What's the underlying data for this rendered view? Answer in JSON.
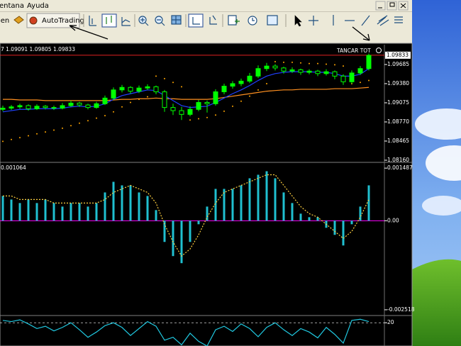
{
  "menu": [
    "entana",
    "Ayuda"
  ],
  "toolbar": {
    "cut_button": "len",
    "autotrading": "AutoTrading"
  },
  "chart": {
    "type": "candlestick",
    "symbol_info": "7 1.09091 1.09805 1.09833",
    "button_label": "TANCAR TOT",
    "current_price": {
      "value": 1.09833,
      "label": "1.09833"
    },
    "ylim": [
      1.08137,
      1.10001
    ],
    "yticks": [
      {
        "value": 1.09685,
        "label": "1.09685"
      },
      {
        "value": 1.0938,
        "label": "1.09380"
      },
      {
        "value": 1.09075,
        "label": "1.09075"
      },
      {
        "value": 1.0877,
        "label": "1.08770"
      },
      {
        "value": 1.08465,
        "label": "1.08465"
      },
      {
        "value": 1.0816,
        "label": "1.08160"
      }
    ],
    "candles": [
      [
        1.0897,
        1.0903,
        1.0894,
        1.0899
      ],
      [
        1.0899,
        1.0904,
        1.0896,
        1.0901
      ],
      [
        1.0901,
        1.0906,
        1.0898,
        1.0903
      ],
      [
        1.0903,
        1.0905,
        1.0895,
        1.0898
      ],
      [
        1.0898,
        1.0905,
        1.0896,
        1.0902
      ],
      [
        1.0902,
        1.0904,
        1.0897,
        1.09
      ],
      [
        1.09,
        1.0903,
        1.0896,
        1.0899
      ],
      [
        1.0899,
        1.0907,
        1.0897,
        1.0903
      ],
      [
        1.0903,
        1.0911,
        1.0901,
        1.0907
      ],
      [
        1.0907,
        1.0909,
        1.0901,
        1.0904
      ],
      [
        1.0904,
        1.0906,
        1.0897,
        1.09
      ],
      [
        1.09,
        1.0909,
        1.0898,
        1.0906
      ],
      [
        1.0906,
        1.0919,
        1.0904,
        1.0915
      ],
      [
        1.0915,
        1.0932,
        1.0912,
        1.0928
      ],
      [
        1.0928,
        1.0936,
        1.0924,
        1.0932
      ],
      [
        1.0932,
        1.0934,
        1.0922,
        1.0926
      ],
      [
        1.0926,
        1.0935,
        1.0923,
        1.0931
      ],
      [
        1.0931,
        1.0937,
        1.0928,
        1.0933
      ],
      [
        1.0933,
        1.0935,
        1.0921,
        1.0925
      ],
      [
        1.0925,
        1.0928,
        1.0893,
        1.09
      ],
      [
        1.09,
        1.0906,
        1.0888,
        1.0895
      ],
      [
        1.0895,
        1.0901,
        1.088,
        1.0889
      ],
      [
        1.0889,
        1.0902,
        1.0886,
        1.0897
      ],
      [
        1.0897,
        1.0912,
        1.0894,
        1.0908
      ],
      [
        1.0908,
        1.0911,
        1.0892,
        1.0906
      ],
      [
        1.0906,
        1.0929,
        1.0903,
        1.0925
      ],
      [
        1.0925,
        1.0938,
        1.0921,
        1.0934
      ],
      [
        1.0934,
        1.0942,
        1.093,
        1.0938
      ],
      [
        1.0938,
        1.0946,
        1.0934,
        1.0942
      ],
      [
        1.0942,
        1.0955,
        1.0939,
        1.095
      ],
      [
        1.095,
        1.0967,
        1.0947,
        1.0962
      ],
      [
        1.0962,
        1.0971,
        1.0958,
        1.0966
      ],
      [
        1.0966,
        1.0969,
        1.0959,
        1.0963
      ],
      [
        1.0963,
        1.0965,
        1.0954,
        1.0958
      ],
      [
        1.0958,
        1.0964,
        1.0955,
        1.096
      ],
      [
        1.096,
        1.0962,
        1.0952,
        1.0956
      ],
      [
        1.0956,
        1.0961,
        1.0953,
        1.0958
      ],
      [
        1.0958,
        1.096,
        1.095,
        1.0954
      ],
      [
        1.0954,
        1.0961,
        1.0951,
        1.0957
      ],
      [
        1.0957,
        1.0959,
        1.0945,
        1.095
      ],
      [
        1.095,
        1.0953,
        1.0936,
        1.0941
      ],
      [
        1.0941,
        1.0959,
        1.0938,
        1.0955
      ],
      [
        1.0955,
        1.0966,
        1.0952,
        1.0962
      ],
      [
        1.0962,
        1.0986,
        1.0959,
        1.0983
      ]
    ],
    "ma_fast": {
      "color": "#2040ff",
      "values": [
        1.0893,
        1.0895,
        1.0897,
        1.0897,
        1.0898,
        1.0898,
        1.0898,
        1.0899,
        1.0901,
        1.0902,
        1.0901,
        1.0902,
        1.0906,
        1.0913,
        1.0919,
        1.0922,
        1.0925,
        1.0928,
        1.0927,
        1.0919,
        1.0911,
        1.0903,
        1.09,
        1.0901,
        1.0902,
        1.0908,
        1.0915,
        1.0922,
        1.0928,
        1.0935,
        1.0943,
        1.095,
        1.0954,
        1.0956,
        1.0957,
        1.0957,
        1.0957,
        1.0956,
        1.0956,
        1.0954,
        1.095,
        1.095,
        1.0953,
        1.0962
      ]
    },
    "ma_slow": {
      "color": "#ff9020",
      "values": [
        1.0913,
        1.0913,
        1.0912,
        1.0912,
        1.0912,
        1.0911,
        1.0911,
        1.0911,
        1.0911,
        1.0911,
        1.0911,
        1.0911,
        1.0911,
        1.0912,
        1.0913,
        1.0913,
        1.0914,
        1.0914,
        1.0915,
        1.0914,
        1.0914,
        1.0913,
        1.0913,
        1.0913,
        1.0913,
        1.0914,
        1.0916,
        1.0918,
        1.092,
        1.0922,
        1.0924,
        1.0926,
        1.0927,
        1.0928,
        1.0928,
        1.0929,
        1.0929,
        1.0929,
        1.0929,
        1.093,
        1.093,
        1.093,
        1.0931,
        1.0932
      ]
    },
    "sar": {
      "color": "#ffa500",
      "values": [
        1.0846,
        1.0849,
        1.0852,
        1.0855,
        1.0858,
        1.0861,
        1.0864,
        1.0867,
        1.0871,
        1.0875,
        1.0879,
        1.0883,
        1.0887,
        1.0893,
        1.0901,
        1.0908,
        1.0913,
        1.0917,
        1.095,
        1.0946,
        1.094,
        1.0933,
        1.088,
        1.0882,
        1.0884,
        1.0888,
        1.0894,
        1.0902,
        1.091,
        1.0918,
        1.0928,
        1.0938,
        1.0973,
        1.0972,
        1.0972,
        1.0971,
        1.097,
        1.097,
        1.0969,
        1.0968,
        1.0966,
        1.0938,
        1.094,
        1.0943
      ]
    }
  },
  "macd": {
    "info": 0.001064,
    "ylim": [
      -0.00266,
      0.00159
    ],
    "yticks": [
      0.001487,
      {
        "value": 0,
        "label": "0.00"
      },
      -0.002518
    ],
    "histogram": {
      "color": "#20c0d0",
      "values": [
        0.0007,
        0.0006,
        0.0005,
        0.0006,
        0.0005,
        0.0006,
        0.0005,
        0.0004,
        0.0005,
        0.0005,
        0.0004,
        0.0005,
        0.0008,
        0.0011,
        0.001,
        0.001,
        0.0008,
        0.0007,
        0.0003,
        -0.0006,
        -0.001,
        -0.0012,
        -0.0006,
        -0.0001,
        0.0004,
        0.0009,
        0.0009,
        0.0009,
        0.001,
        0.0012,
        0.0013,
        0.0014,
        0.0012,
        0.0008,
        0.0005,
        0.0002,
        0.0001,
        0.0001,
        -0.0002,
        -0.0004,
        -0.0007,
        -0.0001,
        0.0004,
        0.001
      ]
    },
    "signal": {
      "color": "#ffd040",
      "values": [
        0.0007,
        0.0007,
        0.0006,
        0.0006,
        0.0006,
        0.0006,
        0.0005,
        0.0005,
        0.0005,
        0.0005,
        0.0005,
        0.0005,
        0.0006,
        0.0008,
        0.0009,
        0.001,
        0.0009,
        0.0008,
        0.0005,
        -0.0001,
        -0.0006,
        -0.001,
        -0.0008,
        -0.0004,
        0.0001,
        0.0005,
        0.0008,
        0.0009,
        0.001,
        0.0011,
        0.0012,
        0.0013,
        0.0013,
        0.001,
        0.0007,
        0.0004,
        0.0002,
        0.0001,
        -0.0001,
        -0.0003,
        -0.0005,
        -0.0003,
        0.0001,
        0.0006
      ]
    }
  },
  "oscillator": {
    "ylim": [
      -20,
      30
    ],
    "yticks": [
      20
    ],
    "color": "#20c8e0",
    "values": [
      24,
      22,
      25,
      18,
      10,
      14,
      6,
      12,
      20,
      8,
      -5,
      4,
      15,
      20,
      12,
      -2,
      10,
      22,
      14,
      -10,
      -5,
      -18,
      2,
      -12,
      -20,
      8,
      14,
      5,
      18,
      10,
      -4,
      12,
      20,
      8,
      -2,
      10,
      4,
      -6,
      12,
      0,
      -15,
      24,
      26,
      22
    ]
  }
}
